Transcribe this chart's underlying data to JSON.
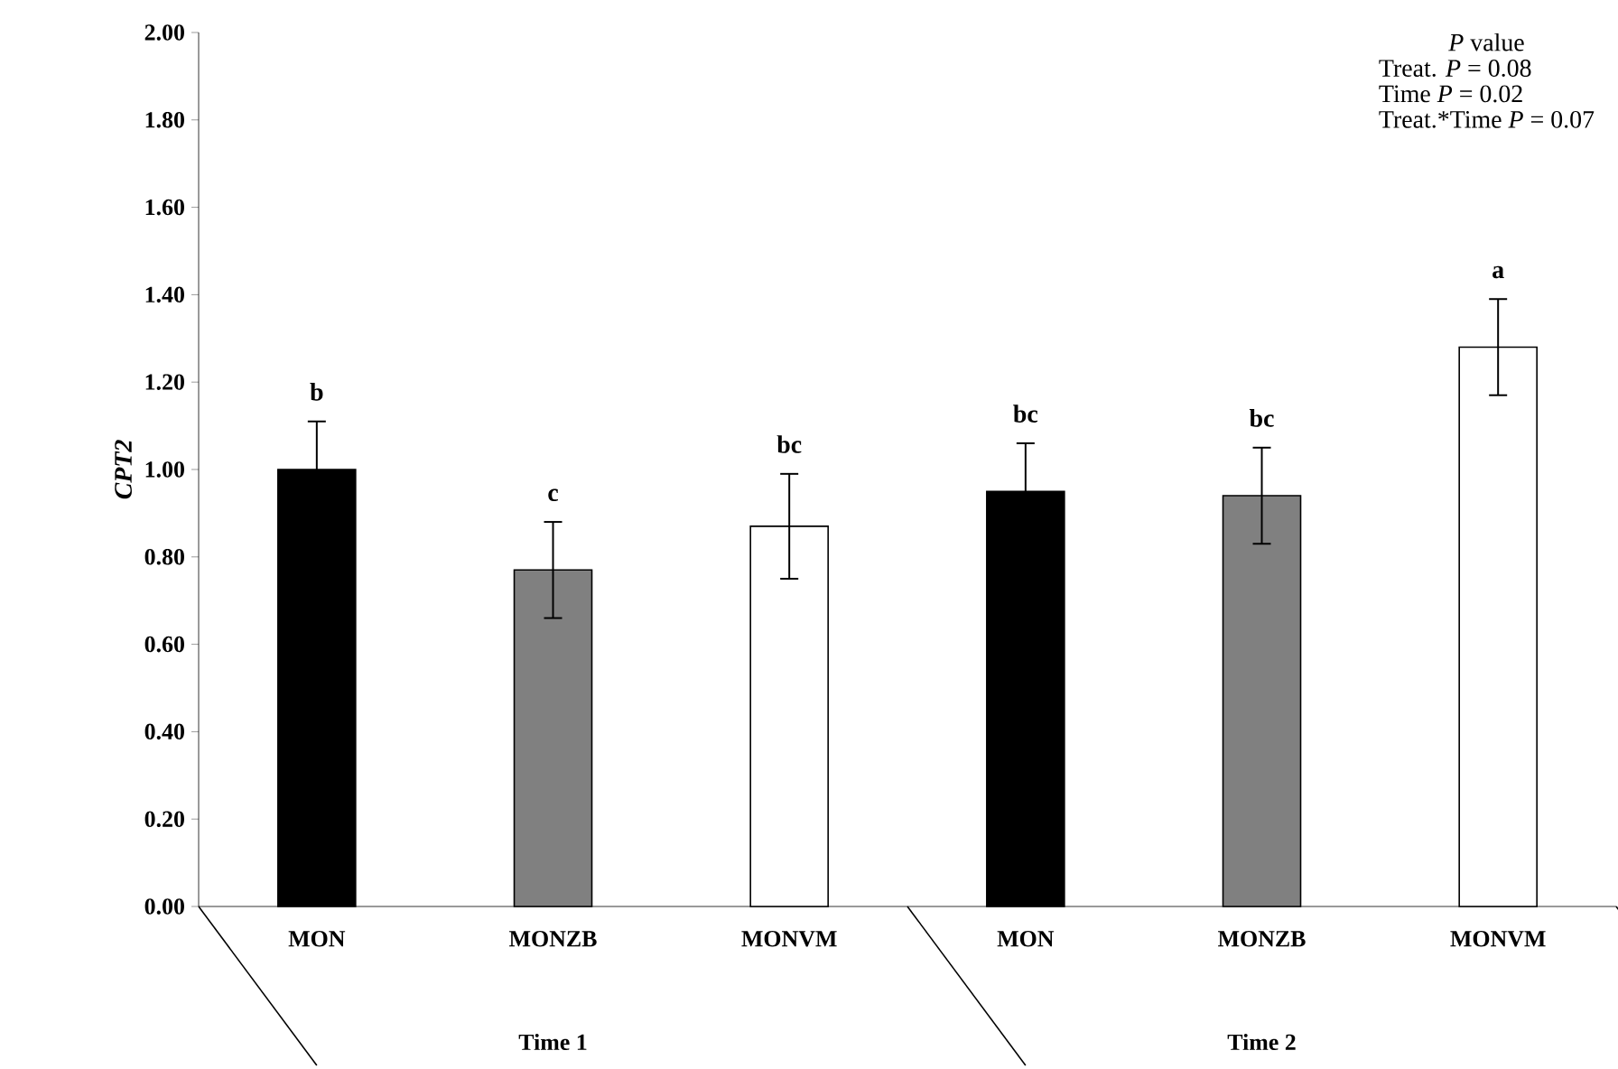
{
  "chart_data": {
    "type": "bar",
    "ylabel": "CPT2",
    "categories": [
      "MON",
      "MONZB",
      "MONVM",
      "MON",
      "MONZB",
      "MONVM"
    ],
    "values": [
      1.0,
      0.77,
      0.87,
      0.95,
      0.94,
      1.28
    ],
    "errors": [
      0.11,
      0.11,
      0.12,
      0.11,
      0.11,
      0.11
    ],
    "colors": [
      "#000000",
      "#808080",
      "#ffffff",
      "#000000",
      "#808080",
      "#ffffff"
    ],
    "ylim": [
      0,
      2
    ],
    "yticks": [
      {
        "value": 0,
        "label": "0.00"
      },
      {
        "value": 0.2,
        "label": "0.20"
      },
      {
        "value": 0.4,
        "label": "0.40"
      },
      {
        "value": 0.6,
        "label": "0.60"
      },
      {
        "value": 0.8,
        "label": "0.80"
      },
      {
        "value": 1.0,
        "label": "1.00"
      },
      {
        "value": 1.2,
        "label": "1.20"
      },
      {
        "value": 1.4,
        "label": "1.40"
      },
      {
        "value": 1.6,
        "label": "1.60"
      },
      {
        "value": 1.8,
        "label": "1.80"
      },
      {
        "value": 2.0,
        "label": "2.00"
      }
    ],
    "annotations": [
      "b",
      "c",
      "bc",
      "bc",
      "bc",
      "a",
      "*P* value",
      "Treat.   *P* = 0.08",
      "Time   *P* = 0.02",
      "Treat.*Time   *P* = 0.07",
      "Time 1",
      "Time 2"
    ]
  }
}
